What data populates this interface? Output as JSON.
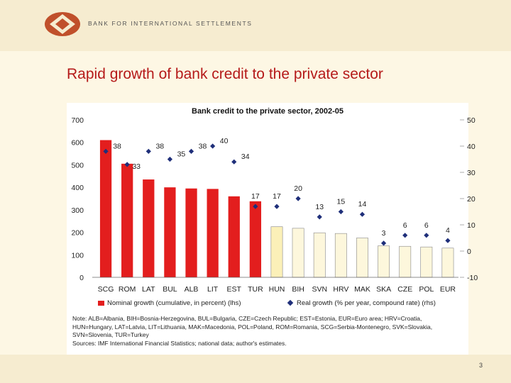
{
  "header": {
    "org_name": "BANK FOR INTERNATIONAL SETTLEMENTS",
    "logo_icon": "bis-logo-icon"
  },
  "slide": {
    "title": "Rapid growth of bank credit to the private sector",
    "page_number": "3"
  },
  "colors": {
    "title_red": "#b51a1a",
    "bar_red": "#e31e1e",
    "bar_light": "#fdf7dc",
    "bar_light_highlight": "#fbf0b8",
    "marker_blue": "#1f2f7a"
  },
  "chart_data": {
    "type": "bar",
    "title": "Bank credit to the private sector, 2002-05",
    "categories": [
      "SCG",
      "ROM",
      "LAT",
      "BUL",
      "ALB",
      "LIT",
      "EST",
      "TUR",
      "HUN",
      "BIH",
      "SVN",
      "HRV",
      "MAK",
      "SKA",
      "CZE",
      "POL",
      "EUR"
    ],
    "series": [
      {
        "name": "Nominal growth (cumulative, in percent) (lhs)",
        "axis": "left",
        "type": "bar",
        "values": [
          610,
          505,
          435,
          400,
          395,
          393,
          360,
          338,
          225,
          218,
          198,
          195,
          175,
          140,
          138,
          135,
          130
        ]
      },
      {
        "name": "Real growth (% per year, compound rate) (rhs)",
        "axis": "right",
        "type": "scatter",
        "values": [
          38,
          33,
          38,
          35,
          38,
          40,
          34,
          17,
          17,
          20,
          13,
          15,
          14,
          3,
          6,
          6,
          4
        ]
      }
    ],
    "left_axis": {
      "min": 0,
      "max": 700,
      "ticks": [
        "0",
        "100",
        "200",
        "300",
        "400",
        "500",
        "600",
        "700"
      ]
    },
    "right_axis": {
      "min": -10,
      "max": 50,
      "ticks": [
        "-10",
        "0",
        "10",
        "20",
        "30",
        "40",
        "50"
      ]
    },
    "bar_color_groups": {
      "red": 8,
      "light": 9
    },
    "legend_position": "bottom",
    "grid": false
  },
  "legend": {
    "bar_label": "Nominal growth (cumulative, in percent) (lhs)",
    "dot_label": "Real growth (% per year, compound rate) (rhs)"
  },
  "notes": {
    "line1": "Note: ALB=Albania, BIH=Bosnia-Herzegovina, BUL=Bulgaria, CZE=Czech Republic; EST=Estonia, EUR=Euro area; HRV=Croatia,",
    "line2": "HUN=Hungary, LAT=Latvia, LIT=Lithuania, MAK=Macedonia, POL=Poland, ROM=Romania, SCG=Serbia-Montenegro, SVK=Slovakia,",
    "line3": "SVN=Slovenia, TUR=Turkey",
    "sources": "Sources: IMF International Financial Statistics; national data; author's estimates."
  }
}
